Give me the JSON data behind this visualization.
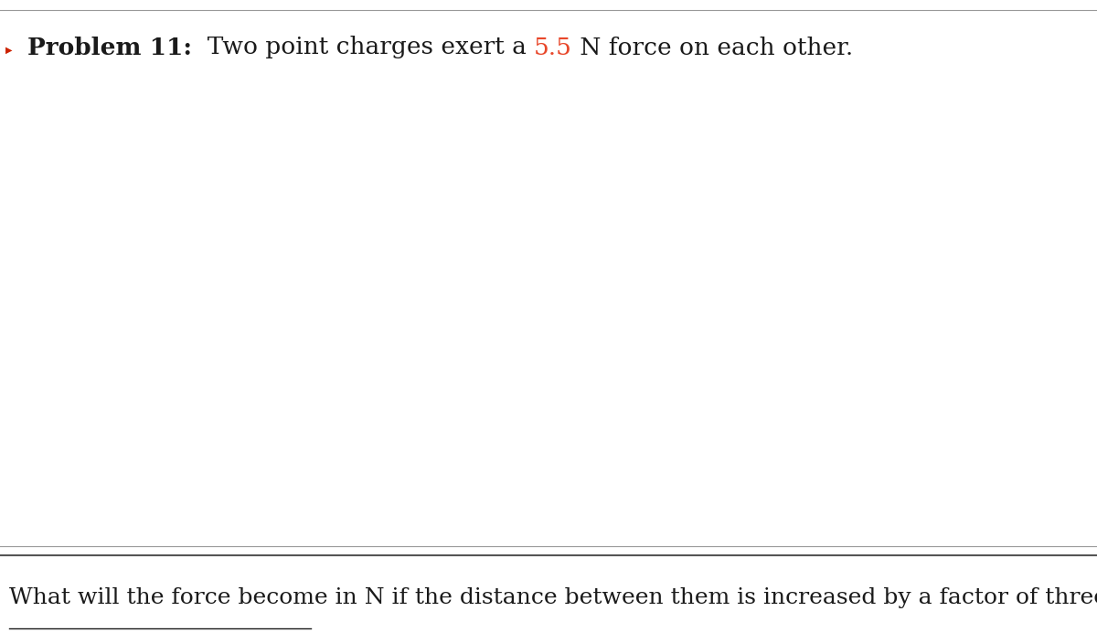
{
  "background_color": "#ffffff",
  "sep_line_color": "#999999",
  "line1_parts": [
    {
      "text": "Problem 11:",
      "bold": true,
      "color": "#1a1a1a",
      "size": 19
    },
    {
      "text": "  Two point charges exert a ",
      "bold": false,
      "color": "#1a1a1a",
      "size": 19
    },
    {
      "text": "5.5",
      "bold": false,
      "color": "#e8472a",
      "size": 19
    },
    {
      "text": " N force on each other.",
      "bold": false,
      "color": "#1a1a1a",
      "size": 19
    }
  ],
  "line2_text": "What will the force become in N if the distance between them is increased by a factor of three?",
  "line2_color": "#1a1a1a",
  "line2_size": 18,
  "answer_line_color": "#1a1a1a",
  "bullet_color": "#cc2200"
}
